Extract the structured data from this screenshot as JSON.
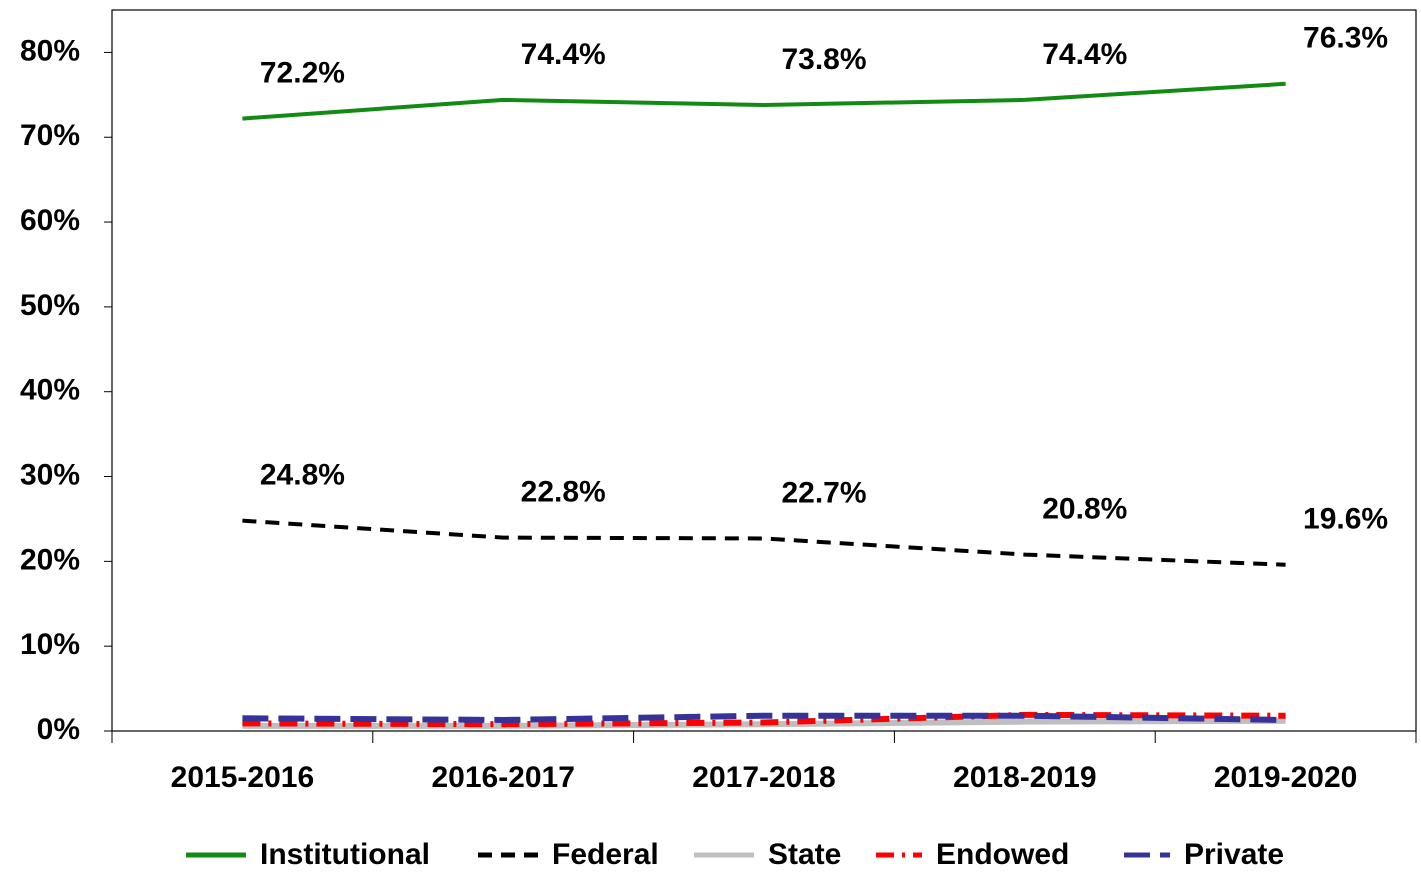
{
  "chart_data": {
    "type": "line",
    "categories": [
      "2015-2016",
      "2016-2017",
      "2017-2018",
      "2018-2019",
      "2019-2020"
    ],
    "series": [
      {
        "name": "Institutional",
        "color": "#138a13",
        "dash": "solid",
        "values": [
          72.2,
          74.4,
          73.8,
          74.4,
          76.3
        ],
        "value_labels": [
          "72.2%",
          "74.4%",
          "73.8%",
          "74.4%",
          "76.3%"
        ]
      },
      {
        "name": "Federal",
        "color": "#000000",
        "dash": "dash",
        "values": [
          24.8,
          22.8,
          22.7,
          20.8,
          19.6
        ],
        "value_labels": [
          "24.8%",
          "22.8%",
          "22.7%",
          "20.8%",
          "19.6%"
        ]
      },
      {
        "name": "State",
        "color": "#bfbfbf",
        "dash": "solid",
        "values": [
          0.6,
          0.6,
          0.8,
          1.1,
          1.2
        ]
      },
      {
        "name": "Endowed",
        "color": "#ff0000",
        "dash": "dashdot",
        "values": [
          0.9,
          0.8,
          1.0,
          1.9,
          1.8
        ]
      },
      {
        "name": "Private",
        "color": "#333399",
        "dash": "longdash",
        "values": [
          1.5,
          1.3,
          1.8,
          1.8,
          1.3
        ]
      }
    ],
    "ylim": [
      0,
      85
    ],
    "yticks": [
      {
        "value": 0,
        "label": "0%"
      },
      {
        "value": 10,
        "label": "10%"
      },
      {
        "value": 20,
        "label": "20%"
      },
      {
        "value": 30,
        "label": "30%"
      },
      {
        "value": 40,
        "label": "40%"
      },
      {
        "value": 50,
        "label": "50%"
      },
      {
        "value": 60,
        "label": "60%"
      },
      {
        "value": 70,
        "label": "70%"
      },
      {
        "value": 80,
        "label": "80%"
      }
    ],
    "legend": "bottom"
  }
}
